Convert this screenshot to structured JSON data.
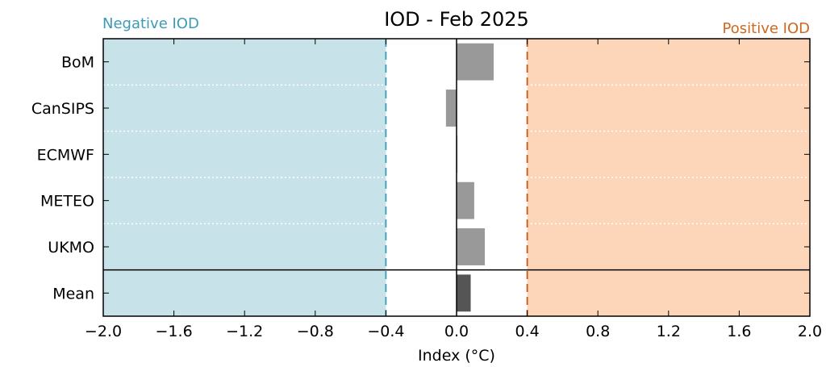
{
  "chart_data": {
    "type": "bar",
    "orientation": "horizontal",
    "title": "IOD - Feb 2025",
    "xlabel": "Index (°C)",
    "ylabel": "",
    "xlim": [
      -2.0,
      2.0
    ],
    "xticks": [
      "−2.0",
      "−1.6",
      "−1.2",
      "−0.8",
      "−0.4",
      "0.0",
      "0.4",
      "0.8",
      "1.2",
      "1.6",
      "2.0"
    ],
    "xtick_values": [
      -2.0,
      -1.6,
      -1.2,
      -0.8,
      -0.4,
      0.0,
      0.4,
      0.8,
      1.2,
      1.6,
      2.0
    ],
    "categories": [
      "BoM",
      "CanSIPS",
      "ECMWF",
      "METEO",
      "UKMO",
      "Mean"
    ],
    "values": [
      0.21,
      -0.06,
      0.005,
      0.1,
      0.16,
      0.08
    ],
    "thresholds": [
      -0.4,
      0.4
    ],
    "regions": {
      "negative": {
        "label": "Negative IOD",
        "from": -2.0,
        "to": -0.4,
        "color": "#c8e2ea",
        "label_color": "#3b9ab5",
        "line_color": "#3b9ab5"
      },
      "positive": {
        "label": "Positive IOD",
        "from": 0.4,
        "to": 2.0,
        "color": "#fdd5b8",
        "label_color": "#d0671c",
        "line_color": "#c8541a"
      }
    },
    "bar_color": "#999999",
    "mean_bar_color": "#555555",
    "grid": "dotted horizontal separators"
  }
}
